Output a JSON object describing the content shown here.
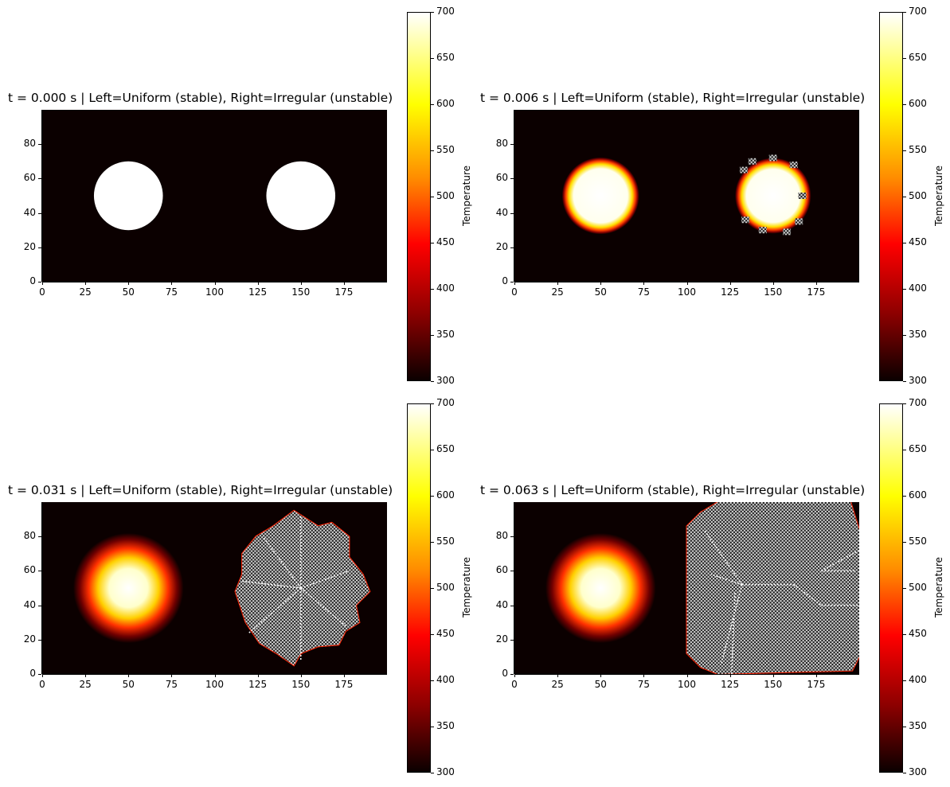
{
  "colors": {
    "background": "#0b0000",
    "hot": "#ffffff",
    "cmap": "hot"
  },
  "chart_data": [
    {
      "type": "heatmap",
      "title": "t = 0.000 s | Left=Uniform (stable), Right=Irregular (unstable)",
      "x_ticks": [
        "0",
        "25",
        "50",
        "75",
        "100",
        "125",
        "150",
        "175"
      ],
      "y_ticks": [
        "0",
        "20",
        "40",
        "60",
        "80"
      ],
      "xlim": [
        0,
        200
      ],
      "ylim": [
        0,
        100
      ],
      "colorbar": {
        "label": "Temperature",
        "ticks": [
          "300",
          "350",
          "400",
          "450",
          "500",
          "550",
          "600",
          "650",
          "700"
        ],
        "range": [
          300,
          700
        ]
      },
      "left_blob": {
        "cx": 50,
        "cy": 50,
        "r": 20,
        "state": "sharp"
      },
      "right_blob": {
        "cx": 150,
        "cy": 50,
        "r": 20,
        "state": "sharp"
      }
    },
    {
      "type": "heatmap",
      "title": "t = 0.006 s | Left=Uniform (stable), Right=Irregular (unstable)",
      "x_ticks": [
        "0",
        "25",
        "50",
        "75",
        "100",
        "125",
        "150",
        "175"
      ],
      "y_ticks": [
        "0",
        "20",
        "40",
        "60",
        "80"
      ],
      "xlim": [
        0,
        200
      ],
      "ylim": [
        0,
        100
      ],
      "colorbar": {
        "label": "Temperature",
        "ticks": [
          "300",
          "350",
          "400",
          "450",
          "500",
          "550",
          "600",
          "650",
          "700"
        ],
        "range": [
          300,
          700
        ]
      },
      "left_blob": {
        "cx": 50,
        "cy": 50,
        "r": 20,
        "state": "diffused"
      },
      "right_blob": {
        "cx": 150,
        "cy": 50,
        "r": 21,
        "state": "diffused-noisy"
      }
    },
    {
      "type": "heatmap",
      "title": "t = 0.031 s | Left=Uniform (stable), Right=Irregular (unstable)",
      "x_ticks": [
        "0",
        "25",
        "50",
        "75",
        "100",
        "125",
        "150",
        "175"
      ],
      "y_ticks": [
        "0",
        "20",
        "40",
        "60",
        "80"
      ],
      "xlim": [
        0,
        200
      ],
      "ylim": [
        0,
        100
      ],
      "colorbar": {
        "label": "Temperature",
        "ticks": [
          "300",
          "350",
          "400",
          "450",
          "500",
          "550",
          "600",
          "650",
          "700"
        ],
        "range": [
          300,
          700
        ]
      },
      "left_blob": {
        "cx": 50,
        "cy": 50,
        "r": 20,
        "state": "glow"
      },
      "right_blob": {
        "cx": 150,
        "cy": 50,
        "r": 40,
        "state": "checkerboard"
      }
    },
    {
      "type": "heatmap",
      "title": "t = 0.063 s | Left=Uniform (stable), Right=Irregular (unstable)",
      "x_ticks": [
        "0",
        "25",
        "50",
        "75",
        "100",
        "125",
        "150",
        "175"
      ],
      "y_ticks": [
        "0",
        "20",
        "40",
        "60",
        "80"
      ],
      "xlim": [
        0,
        200
      ],
      "ylim": [
        0,
        100
      ],
      "colorbar": {
        "label": "Temperature",
        "ticks": [
          "300",
          "350",
          "400",
          "450",
          "500",
          "550",
          "600",
          "650",
          "700"
        ],
        "range": [
          300,
          700
        ]
      },
      "left_blob": {
        "cx": 50,
        "cy": 50,
        "r": 20,
        "state": "glow"
      },
      "right_blob": {
        "cx": 150,
        "cy": 50,
        "r": 50,
        "state": "checkerboard-full"
      }
    }
  ]
}
